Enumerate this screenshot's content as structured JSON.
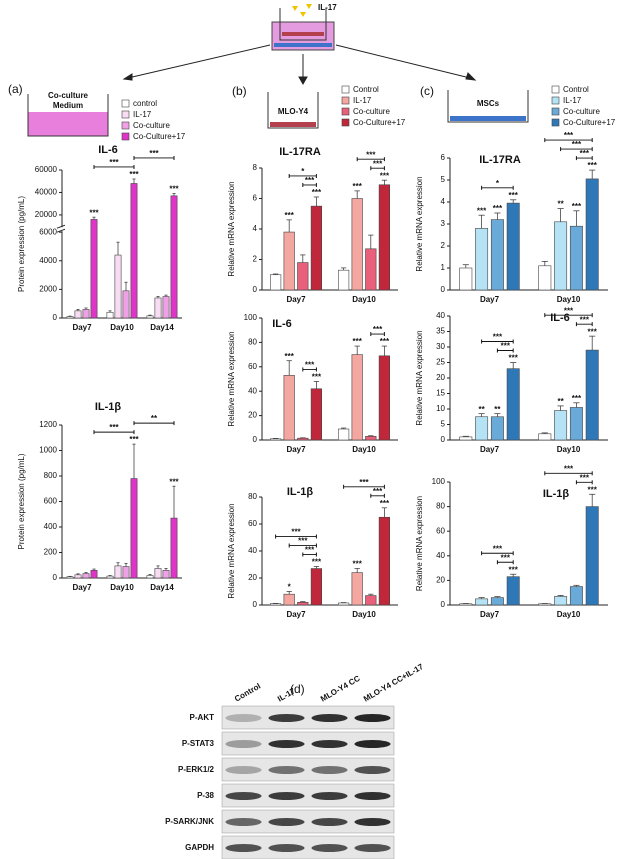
{
  "figure": {
    "insert_label": "IL-17",
    "panels": [
      "(a)",
      "(b)",
      "(c)",
      "(d)"
    ],
    "medium_label": [
      "Co-culture",
      "Medium"
    ],
    "cell_labels": [
      "MLO-Y4",
      "MSCs"
    ],
    "western_blot": {
      "columns": [
        "Control",
        "IL-17",
        "MLO-Y4 CC",
        "MLO-Y4 CC+IL-17"
      ],
      "rows": [
        "P-AKT",
        "P-STAT3",
        "P-ERK1/2",
        "P-38",
        "P-SARK/JNK",
        "GAPDH"
      ]
    }
  },
  "chart_data": [
    {
      "type": "bar",
      "title": "IL-6",
      "ylabel": "Protein expression (pg/mL)",
      "categories": [
        "Day7",
        "Day10",
        "Day14"
      ],
      "legend": "top-right",
      "series": [
        {
          "name": "control",
          "color": "#ffffff",
          "values": [
            100,
            400,
            150
          ],
          "errors": [
            30,
            100,
            50
          ],
          "labels": [
            null,
            null,
            null
          ]
        },
        {
          "name": "IL-17",
          "color": "#f8dcf3",
          "values": [
            500,
            4400,
            1400
          ],
          "errors": [
            100,
            900,
            100
          ],
          "labels": [
            null,
            null,
            null
          ]
        },
        {
          "name": "Co-culture",
          "color": "#f0a0e6",
          "values": [
            600,
            1900,
            1500
          ],
          "errors": [
            100,
            600,
            100
          ],
          "labels": [
            null,
            null,
            null
          ]
        },
        {
          "name": "Co-Culture+17",
          "color": "#e034c8",
          "values": [
            16000,
            48000,
            37000
          ],
          "errors": [
            2000,
            4000,
            2000
          ],
          "labels": [
            "***",
            "***",
            "***"
          ]
        }
      ],
      "ylim": [
        0,
        60000
      ],
      "ybreak": [
        6000,
        10000
      ],
      "yticks": [
        0,
        2000,
        4000,
        6000,
        20000,
        40000,
        60000
      ],
      "brackets": [
        {
          "label": "***",
          "from": [
            0,
            3
          ],
          "to": [
            1,
            3
          ]
        },
        {
          "label": "***",
          "from": [
            1,
            3
          ],
          "to": [
            2,
            3
          ]
        }
      ]
    },
    {
      "type": "bar",
      "title": "IL-1β",
      "ylabel": "Protein expression (pg/mL)",
      "categories": [
        "Day7",
        "Day10",
        "Day14"
      ],
      "series": [
        {
          "color": "#ffffff",
          "values": [
            10,
            15,
            20
          ],
          "errors": [
            3,
            5,
            8
          ],
          "labels": [
            null,
            null,
            null
          ]
        },
        {
          "color": "#f8dcf3",
          "values": [
            25,
            95,
            75
          ],
          "errors": [
            8,
            25,
            20
          ],
          "labels": [
            null,
            null,
            null
          ]
        },
        {
          "color": "#f0a0e6",
          "values": [
            35,
            90,
            60
          ],
          "errors": [
            8,
            25,
            15
          ],
          "labels": [
            null,
            null,
            null
          ]
        },
        {
          "color": "#e034c8",
          "values": [
            60,
            780,
            470
          ],
          "errors": [
            10,
            270,
            250
          ],
          "labels": [
            null,
            "***",
            "***"
          ]
        }
      ],
      "ylim": [
        0,
        1200
      ],
      "yticks": [
        0,
        200,
        400,
        600,
        800,
        1000,
        1200
      ],
      "brackets": [
        {
          "label": "***",
          "from": [
            0,
            3
          ],
          "to": [
            1,
            3
          ]
        },
        {
          "label": "**",
          "from": [
            1,
            3
          ],
          "to": [
            2,
            3
          ]
        }
      ]
    },
    {
      "type": "bar",
      "title": "IL-17RA",
      "ylabel": "Relative mRNA expression",
      "categories": [
        "Day7",
        "Day10"
      ],
      "legend": "top-right",
      "series": [
        {
          "name": "Control",
          "color": "#ffffff",
          "values": [
            1.0,
            1.3
          ],
          "errors": [
            0.05,
            0.15
          ],
          "labels": [
            null,
            null
          ]
        },
        {
          "name": "IL-17",
          "color": "#f4a6a0",
          "values": [
            3.8,
            6.0
          ],
          "errors": [
            0.8,
            0.5
          ],
          "labels": [
            "***",
            "***"
          ]
        },
        {
          "name": "Co-culture",
          "color": "#e8607a",
          "values": [
            1.8,
            2.7
          ],
          "errors": [
            0.5,
            0.9
          ],
          "labels": [
            null,
            null
          ]
        },
        {
          "name": "Co-Culture+17",
          "color": "#c0273a",
          "values": [
            5.5,
            6.9
          ],
          "errors": [
            0.6,
            0.3
          ],
          "labels": [
            "***",
            "***"
          ]
        }
      ],
      "ylim": [
        0,
        8
      ],
      "yticks": [
        0,
        2,
        4,
        6,
        8
      ],
      "brackets": [
        {
          "label": "***",
          "from": [
            0,
            2
          ],
          "to": [
            0,
            3
          ]
        },
        {
          "label": "*",
          "from": [
            0,
            1
          ],
          "to": [
            0,
            3
          ]
        },
        {
          "label": "***",
          "from": [
            1,
            2
          ],
          "to": [
            1,
            3
          ]
        },
        {
          "label": "***",
          "from": [
            1,
            1
          ],
          "to": [
            1,
            3
          ]
        }
      ]
    },
    {
      "type": "bar",
      "title": "IL-6",
      "ylabel": "Relative mRNA expression",
      "categories": [
        "Day7",
        "Day10"
      ],
      "series": [
        {
          "color": "#ffffff",
          "values": [
            1,
            9
          ],
          "errors": [
            0.3,
            0.8
          ],
          "labels": [
            null,
            null
          ]
        },
        {
          "color": "#f4a6a0",
          "values": [
            53,
            70
          ],
          "errors": [
            12,
            7
          ],
          "labels": [
            "***",
            "***"
          ]
        },
        {
          "color": "#e8607a",
          "values": [
            1.5,
            3
          ],
          "errors": [
            0.3,
            0.5
          ],
          "labels": [
            null,
            null
          ]
        },
        {
          "color": "#c0273a",
          "values": [
            42,
            69
          ],
          "errors": [
            6,
            8
          ],
          "labels": [
            "***",
            "***"
          ]
        }
      ],
      "ylim": [
        0,
        100
      ],
      "yticks": [
        0,
        20,
        40,
        60,
        80,
        100
      ],
      "brackets": [
        {
          "label": "***",
          "from": [
            0,
            2
          ],
          "to": [
            0,
            3
          ]
        },
        {
          "label": "***",
          "from": [
            1,
            2
          ],
          "to": [
            1,
            3
          ]
        }
      ]
    },
    {
      "type": "bar",
      "title": "IL-1β",
      "ylabel": "Relative mRNA expression",
      "categories": [
        "Day7",
        "Day10"
      ],
      "series": [
        {
          "color": "#ffffff",
          "values": [
            1,
            1.5
          ],
          "errors": [
            0.2,
            0.3
          ],
          "labels": [
            null,
            null
          ]
        },
        {
          "color": "#f4a6a0",
          "values": [
            8,
            24
          ],
          "errors": [
            2,
            3
          ],
          "labels": [
            "*",
            "***"
          ]
        },
        {
          "color": "#e8607a",
          "values": [
            2,
            7
          ],
          "errors": [
            0.5,
            1
          ],
          "labels": [
            null,
            null
          ]
        },
        {
          "color": "#c0273a",
          "values": [
            27,
            65
          ],
          "errors": [
            1.5,
            7
          ],
          "labels": [
            "***",
            "***"
          ]
        }
      ],
      "ylim": [
        0,
        80
      ],
      "yticks": [
        0,
        20,
        40,
        60,
        80
      ],
      "brackets": [
        {
          "label": "***",
          "from": [
            0,
            2
          ],
          "to": [
            0,
            3
          ]
        },
        {
          "label": "***",
          "from": [
            0,
            1
          ],
          "to": [
            0,
            3
          ]
        },
        {
          "label": "***",
          "from": [
            0,
            0
          ],
          "to": [
            0,
            3
          ]
        },
        {
          "label": "***",
          "from": [
            1,
            2
          ],
          "to": [
            1,
            3
          ]
        },
        {
          "label": "***",
          "from": [
            1,
            0
          ],
          "to": [
            1,
            3
          ]
        }
      ]
    },
    {
      "type": "bar",
      "title": "IL-17RA",
      "ylabel": "Relative mRNA expression",
      "categories": [
        "Day7",
        "Day10"
      ],
      "legend": "top-right",
      "series": [
        {
          "name": "Control",
          "color": "#ffffff",
          "values": [
            1.0,
            1.1
          ],
          "errors": [
            0.15,
            0.2
          ],
          "labels": [
            null,
            null
          ]
        },
        {
          "name": "IL-17",
          "color": "#b5e3f5",
          "values": [
            2.8,
            3.1
          ],
          "errors": [
            0.6,
            0.6
          ],
          "labels": [
            "***",
            "**"
          ]
        },
        {
          "name": "Co-culture",
          "color": "#6aaad8",
          "values": [
            3.2,
            2.9
          ],
          "errors": [
            0.3,
            0.7
          ],
          "labels": [
            "***",
            "***"
          ]
        },
        {
          "name": "Co-Culture+17",
          "color": "#2e78b8",
          "values": [
            3.95,
            5.05
          ],
          "errors": [
            0.15,
            0.4
          ],
          "labels": [
            "***",
            "***"
          ]
        }
      ],
      "ylim": [
        0,
        6
      ],
      "yticks": [
        0,
        1,
        2,
        3,
        4,
        5,
        6
      ],
      "brackets": [
        {
          "label": "*",
          "from": [
            0,
            1
          ],
          "to": [
            0,
            3
          ]
        },
        {
          "label": "***",
          "from": [
            1,
            2
          ],
          "to": [
            1,
            3
          ]
        },
        {
          "label": "***",
          "from": [
            1,
            1
          ],
          "to": [
            1,
            3
          ]
        },
        {
          "label": "***",
          "from": [
            1,
            0
          ],
          "to": [
            1,
            3
          ]
        }
      ]
    },
    {
      "type": "bar",
      "title": "IL-6",
      "ylabel": "Relative mRNA expression",
      "categories": [
        "Day7",
        "Day10"
      ],
      "series": [
        {
          "color": "#ffffff",
          "values": [
            1,
            2
          ],
          "errors": [
            0.2,
            0.3
          ],
          "labels": [
            null,
            null
          ]
        },
        {
          "color": "#b5e3f5",
          "values": [
            7.5,
            9.5
          ],
          "errors": [
            1,
            1.5
          ],
          "labels": [
            "**",
            "**"
          ]
        },
        {
          "color": "#6aaad8",
          "values": [
            7.5,
            10.5
          ],
          "errors": [
            1,
            1.5
          ],
          "labels": [
            "**",
            "***"
          ]
        },
        {
          "color": "#2e78b8",
          "values": [
            23,
            29
          ],
          "errors": [
            2,
            4.5
          ],
          "labels": [
            "***",
            "***"
          ]
        }
      ],
      "ylim": [
        0,
        40
      ],
      "yticks": [
        0,
        5,
        10,
        15,
        20,
        25,
        30,
        35,
        40
      ],
      "brackets": [
        {
          "label": "***",
          "from": [
            0,
            2
          ],
          "to": [
            0,
            3
          ]
        },
        {
          "label": "***",
          "from": [
            0,
            1
          ],
          "to": [
            0,
            3
          ]
        },
        {
          "label": "***",
          "from": [
            1,
            2
          ],
          "to": [
            1,
            3
          ]
        },
        {
          "label": "***",
          "from": [
            1,
            0
          ],
          "to": [
            1,
            3
          ]
        }
      ]
    },
    {
      "type": "bar",
      "title": "IL-1β",
      "ylabel": "Relative mRNA expression",
      "categories": [
        "Day7",
        "Day10"
      ],
      "series": [
        {
          "color": "#ffffff",
          "values": [
            1,
            1
          ],
          "errors": [
            0.2,
            0.2
          ],
          "labels": [
            null,
            null
          ]
        },
        {
          "color": "#b5e3f5",
          "values": [
            5,
            7
          ],
          "errors": [
            1,
            0.8
          ],
          "labels": [
            null,
            null
          ]
        },
        {
          "color": "#6aaad8",
          "values": [
            6,
            15
          ],
          "errors": [
            0.8,
            1
          ],
          "labels": [
            null,
            null
          ]
        },
        {
          "color": "#2e78b8",
          "values": [
            23,
            80
          ],
          "errors": [
            2,
            10
          ],
          "labels": [
            "***",
            "***"
          ]
        }
      ],
      "ylim": [
        0,
        100
      ],
      "yticks": [
        0,
        20,
        40,
        60,
        80,
        100
      ],
      "brackets": [
        {
          "label": "***",
          "from": [
            0,
            2
          ],
          "to": [
            0,
            3
          ]
        },
        {
          "label": "***",
          "from": [
            0,
            1
          ],
          "to": [
            0,
            3
          ]
        },
        {
          "label": "***",
          "from": [
            1,
            2
          ],
          "to": [
            1,
            3
          ]
        },
        {
          "label": "***",
          "from": [
            1,
            0
          ],
          "to": [
            1,
            3
          ]
        }
      ]
    }
  ]
}
